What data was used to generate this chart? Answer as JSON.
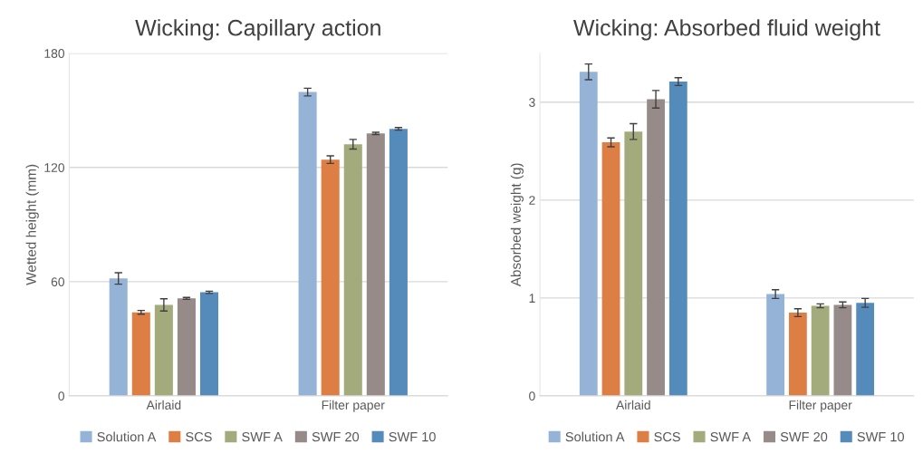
{
  "chart_data": [
    {
      "type": "bar",
      "title": "Wicking: Capillary action",
      "ylabel": "Wetted height (mm)",
      "categories": [
        "Airlaid",
        "Filter paper"
      ],
      "ylim": [
        0,
        180
      ],
      "yticks": [
        0,
        60,
        120,
        180
      ],
      "grid": "y",
      "legend": "bottom",
      "series": [
        {
          "name": "Solution A",
          "color": "#95b3d7",
          "values": [
            61.7,
            159.6
          ],
          "errors": [
            3,
            2
          ]
        },
        {
          "name": "SCS",
          "color": "#dd7e44",
          "values": [
            43.9,
            124.1
          ],
          "errors": [
            1,
            2
          ]
        },
        {
          "name": "SWF A",
          "color": "#a3aa7c",
          "values": [
            47.8,
            132.2
          ],
          "errors": [
            3.2,
            2.5
          ]
        },
        {
          "name": "SWF 20",
          "color": "#968b88",
          "values": [
            51.2,
            137.9
          ],
          "errors": [
            0.5,
            0.6
          ]
        },
        {
          "name": "SWF 10",
          "color": "#558bbb",
          "values": [
            54.4,
            140.3
          ],
          "errors": [
            0.6,
            0.7
          ]
        }
      ]
    },
    {
      "type": "bar",
      "title": "Wicking: Absorbed fluid weight",
      "ylabel": "Absorbed weight (g)",
      "categories": [
        "Airlaid",
        "Filter paper"
      ],
      "ylim": [
        0,
        3.5
      ],
      "yticks": [
        0,
        1,
        2,
        3
      ],
      "grid": "y",
      "legend": "bottom",
      "series": [
        {
          "name": "Solution A",
          "color": "#95b3d7",
          "values": [
            3.31,
            1.04
          ],
          "errors": [
            0.08,
            0.045
          ]
        },
        {
          "name": "SCS",
          "color": "#dd7e44",
          "values": [
            2.59,
            0.85
          ],
          "errors": [
            0.045,
            0.04
          ]
        },
        {
          "name": "SWF A",
          "color": "#a3aa7c",
          "values": [
            2.7,
            0.92
          ],
          "errors": [
            0.08,
            0.02
          ]
        },
        {
          "name": "SWF 20",
          "color": "#968b88",
          "values": [
            3.03,
            0.93
          ],
          "errors": [
            0.09,
            0.03
          ]
        },
        {
          "name": "SWF 10",
          "color": "#558bbb",
          "values": [
            3.21,
            0.95
          ],
          "errors": [
            0.04,
            0.045
          ]
        }
      ]
    }
  ]
}
